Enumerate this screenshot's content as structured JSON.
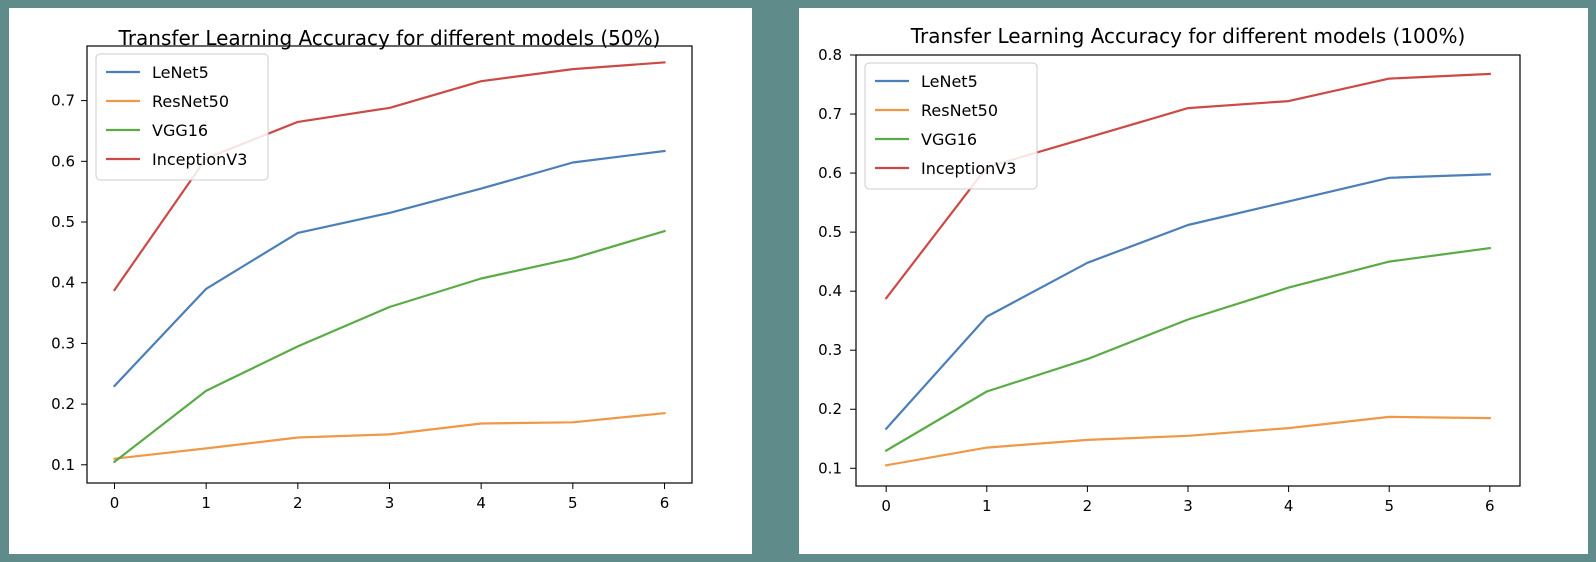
{
  "colors": {
    "background": "#5f8c8a",
    "panel": "#ffffff"
  },
  "chart_data": [
    {
      "type": "line",
      "title": "Transfer Learning Accuracy for different models (50%)",
      "xlabel": "",
      "ylabel": "",
      "x": [
        0,
        1,
        2,
        3,
        4,
        5,
        6
      ],
      "xticks": [
        0,
        1,
        2,
        3,
        4,
        5,
        6
      ],
      "yticks": [
        0.1,
        0.2,
        0.3,
        0.4,
        0.5,
        0.6,
        0.7
      ],
      "xlim": [
        -0.3,
        6.3
      ],
      "ylim": [
        0.07,
        0.79
      ],
      "grid": false,
      "legend": "upper-left",
      "series": [
        {
          "name": "LeNet5",
          "color": "#4c7fb7",
          "values": [
            0.23,
            0.39,
            0.482,
            0.515,
            0.555,
            0.598,
            0.617
          ]
        },
        {
          "name": "ResNet50",
          "color": "#ef9845",
          "values": [
            0.11,
            0.127,
            0.145,
            0.15,
            0.168,
            0.17,
            0.185
          ]
        },
        {
          "name": "VGG16",
          "color": "#5aab46",
          "values": [
            0.105,
            0.222,
            0.295,
            0.36,
            0.407,
            0.44,
            0.485
          ]
        },
        {
          "name": "InceptionV3",
          "color": "#cc4a45",
          "values": [
            0.388,
            0.605,
            0.665,
            0.688,
            0.732,
            0.752,
            0.763
          ]
        }
      ]
    },
    {
      "type": "line",
      "title": "Transfer Learning Accuracy for different models (100%)",
      "xlabel": "",
      "ylabel": "",
      "x": [
        0,
        1,
        2,
        3,
        4,
        5,
        6
      ],
      "xticks": [
        0,
        1,
        2,
        3,
        4,
        5,
        6
      ],
      "yticks": [
        0.1,
        0.2,
        0.3,
        0.4,
        0.5,
        0.6,
        0.7,
        0.8
      ],
      "xlim": [
        -0.3,
        6.3
      ],
      "ylim": [
        0.07,
        0.8
      ],
      "grid": false,
      "legend": "upper-left",
      "series": [
        {
          "name": "LeNet5",
          "color": "#4c7fb7",
          "values": [
            0.167,
            0.357,
            0.448,
            0.512,
            0.552,
            0.592,
            0.598
          ]
        },
        {
          "name": "ResNet50",
          "color": "#ef9845",
          "values": [
            0.105,
            0.135,
            0.148,
            0.155,
            0.168,
            0.187,
            0.185
          ]
        },
        {
          "name": "VGG16",
          "color": "#5aab46",
          "values": [
            0.13,
            0.23,
            0.285,
            0.352,
            0.406,
            0.45,
            0.473
          ]
        },
        {
          "name": "InceptionV3",
          "color": "#cc4a45",
          "values": [
            0.388,
            0.61,
            0.66,
            0.71,
            0.722,
            0.76,
            0.768
          ]
        }
      ]
    }
  ]
}
